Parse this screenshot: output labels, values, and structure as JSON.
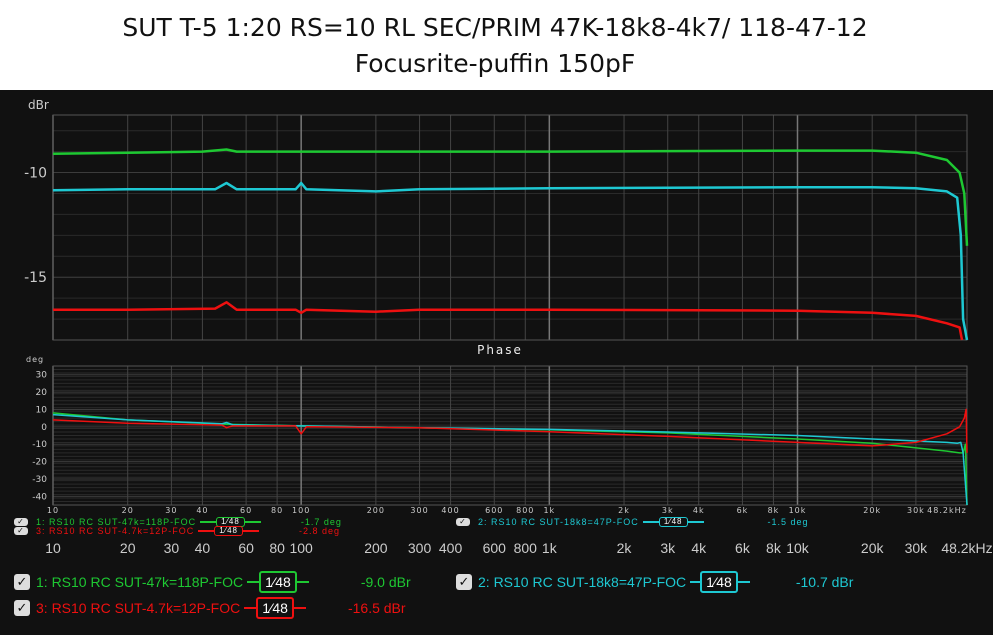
{
  "title": {
    "line1": "SUT T-5 1:20 RS=10 RL SEC/PRIM 47K-18k8-4k7/ 118-47-12",
    "line2": "Focusrite-puffin 150pF"
  },
  "smoothing_label": "1⁄48",
  "check_glyph": "✓",
  "chart_data": [
    {
      "type": "line",
      "title": "",
      "ylabel": "dBr",
      "xlabel": "",
      "xscale": "log",
      "xlim": [
        10,
        48200
      ],
      "ylim": [
        -18,
        -7.25
      ],
      "yticks": [
        -10,
        -15
      ],
      "xticks": [
        "10",
        "20",
        "30",
        "40",
        "60",
        "80",
        "100",
        "200",
        "300",
        "400",
        "600",
        "800",
        "1k",
        "2k",
        "3k",
        "4k",
        "6k",
        "8k",
        "10k",
        "20k",
        "30k",
        "48.2kHz"
      ],
      "xtick_values": [
        10,
        20,
        30,
        40,
        60,
        80,
        100,
        200,
        300,
        400,
        600,
        800,
        1000,
        2000,
        3000,
        4000,
        6000,
        8000,
        10000,
        20000,
        30000,
        48200
      ],
      "series": [
        {
          "name": "1: RS10 RC SUT-47k=118P-FOC",
          "color": "#1ec832",
          "readout": "-9.0 dBr",
          "x": [
            10,
            20,
            40,
            50,
            55,
            100,
            1000,
            10000,
            20000,
            30000,
            40000,
            45000,
            47000,
            48200
          ],
          "y": [
            -9.1,
            -9.05,
            -9.0,
            -8.9,
            -9.0,
            -9.0,
            -9.0,
            -8.95,
            -8.95,
            -9.05,
            -9.4,
            -10,
            -11,
            -13.5
          ]
        },
        {
          "name": "2: RS10 RC SUT-18k8=47P-FOC",
          "color": "#1ec8d2",
          "readout": "-10.7 dBr",
          "x": [
            10,
            20,
            45,
            50,
            55,
            95,
            100,
            105,
            200,
            300,
            1000,
            10000,
            20000,
            30000,
            40000,
            44000,
            45500,
            46500,
            48200
          ],
          "y": [
            -10.85,
            -10.8,
            -10.8,
            -10.5,
            -10.8,
            -10.8,
            -10.5,
            -10.8,
            -10.9,
            -10.8,
            -10.75,
            -10.7,
            -10.7,
            -10.75,
            -10.9,
            -11.2,
            -13,
            -17,
            -18
          ]
        },
        {
          "name": "3: RS10 RC SUT-4.7k=12P-FOC",
          "color": "#ee1010",
          "readout": "-16.5 dBr",
          "x": [
            10,
            20,
            45,
            50,
            55,
            95,
            100,
            105,
            200,
            300,
            1000,
            10000,
            20000,
            30000,
            40000,
            45000,
            46000
          ],
          "y": [
            -16.55,
            -16.55,
            -16.5,
            -16.2,
            -16.55,
            -16.55,
            -16.7,
            -16.55,
            -16.65,
            -16.55,
            -16.55,
            -16.6,
            -16.7,
            -16.85,
            -17.2,
            -17.4,
            -18
          ]
        }
      ]
    },
    {
      "type": "line",
      "title": "Phase",
      "ylabel": "deg",
      "xlabel": "",
      "xscale": "log",
      "xlim": [
        10,
        48200
      ],
      "ylim": [
        -45,
        35
      ],
      "yticks": [
        30,
        20,
        10,
        0,
        -10,
        -20,
        -30,
        -40
      ],
      "xticks": [
        "10",
        "20",
        "30",
        "40",
        "60",
        "80",
        "100",
        "200",
        "300",
        "400",
        "600",
        "800",
        "1k",
        "2k",
        "3k",
        "4k",
        "6k",
        "8k",
        "10k",
        "20k",
        "30k",
        "48.2kHz"
      ],
      "xtick_values": [
        10,
        20,
        30,
        40,
        60,
        80,
        100,
        200,
        300,
        400,
        600,
        800,
        1000,
        2000,
        3000,
        4000,
        6000,
        8000,
        10000,
        20000,
        30000,
        48200
      ],
      "series": [
        {
          "name": "1: RS10 RC SUT-47k=118P-FOC",
          "color": "#1ec832",
          "readout": "-1.7 deg",
          "x": [
            10,
            20,
            50,
            100,
            300,
            1000,
            3000,
            10000,
            20000,
            40000,
            45000,
            46500,
            47500,
            48200
          ],
          "y": [
            8,
            4,
            1.5,
            0.5,
            -0.5,
            -1.7,
            -3.5,
            -7,
            -9.5,
            -14,
            -15,
            -15,
            -10,
            -45
          ]
        },
        {
          "name": "2: RS10 RC SUT-18k8=47P-FOC",
          "color": "#1ec8d2",
          "readout": "-1.5 deg",
          "x": [
            10,
            20,
            48,
            50,
            53,
            100,
            300,
            1000,
            3000,
            10000,
            20000,
            40000,
            44000,
            45500,
            46500,
            48200
          ],
          "y": [
            7,
            4,
            1.8,
            2.5,
            1.2,
            0.5,
            -0.5,
            -1.5,
            -3,
            -5,
            -7,
            -9,
            -9.5,
            -9,
            -15,
            -45
          ]
        },
        {
          "name": "3: RS10 RC SUT-4.7k=12P-FOC",
          "color": "#ee1010",
          "readout": "-2.8 deg",
          "x": [
            10,
            20,
            48,
            50,
            53,
            95,
            100,
            105,
            300,
            1000,
            3000,
            10000,
            20000,
            30000,
            40000,
            45000,
            47000,
            47800,
            48200
          ],
          "y": [
            4,
            2,
            1,
            -0.5,
            0.5,
            0.5,
            -4,
            0,
            -0.5,
            -2.8,
            -5.5,
            -9,
            -11,
            -9,
            -4,
            0,
            5,
            10,
            -15
          ]
        }
      ]
    }
  ]
}
